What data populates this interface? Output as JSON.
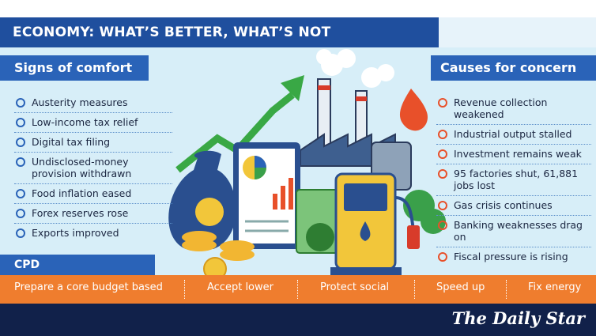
{
  "header": {
    "title": "ECONOMY: WHAT’S BETTER, WHAT’S NOT"
  },
  "comfort": {
    "heading": "Signs of comfort",
    "items": [
      "Austerity measures",
      "Low-income tax relief",
      "Digital tax filing",
      "Undisclosed-money provision withdrawn",
      "Food inflation eased",
      "Forex reserves rose",
      "Exports improved"
    ]
  },
  "concern": {
    "heading": "Causes for concern",
    "items": [
      "Revenue collection weakened",
      "Industrial output stalled",
      "Investment remains weak",
      "95 factories shut, 61,881 jobs lost",
      "Gas crisis continues",
      "Banking weaknesses drag on",
      "Fiscal pressure is rising"
    ]
  },
  "recommendations": {
    "heading": "CPD recommendations",
    "items": [
      "Prepare a core budget based",
      "Accept lower",
      "Protect social",
      "Speed up",
      "Fix energy"
    ]
  },
  "footer": {
    "logo": "The Daily Star"
  }
}
